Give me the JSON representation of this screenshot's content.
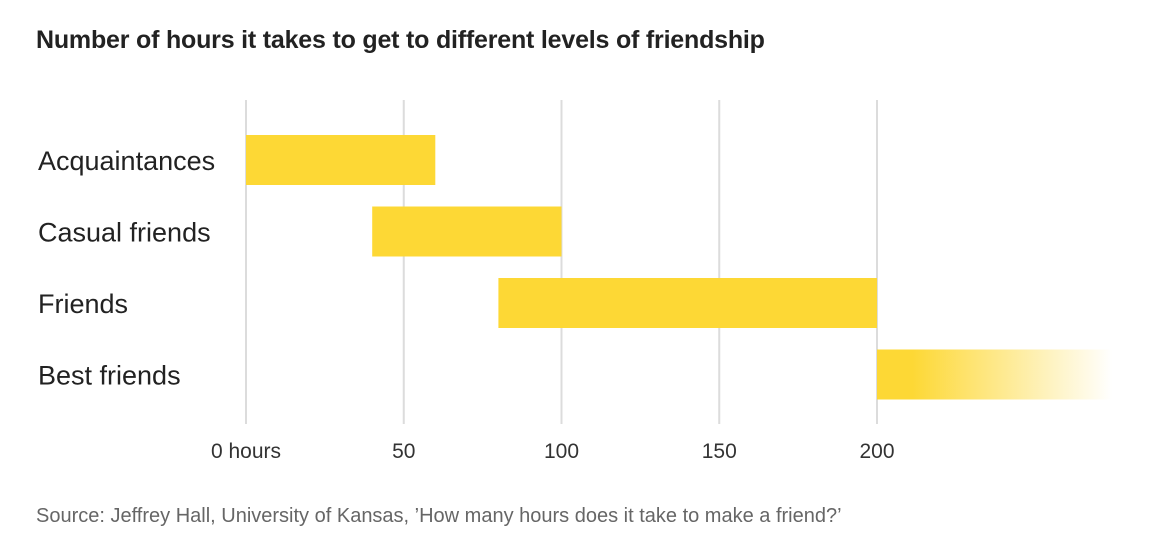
{
  "chart_data": {
    "type": "bar",
    "orientation": "horizontal-range",
    "title": "Number of hours it takes to get to different levels of friendship",
    "categories": [
      "Acquaintances",
      "Casual friends",
      "Friends",
      "Best friends"
    ],
    "ranges": [
      {
        "label": "Acquaintances",
        "start": 0,
        "end": 60
      },
      {
        "label": "Casual friends",
        "start": 40,
        "end": 100
      },
      {
        "label": "Friends",
        "start": 80,
        "end": 200
      },
      {
        "label": "Best friends",
        "start": 200,
        "end": null,
        "open_ended": true
      }
    ],
    "x_ticks": [
      {
        "value": 0,
        "label": "0 hours"
      },
      {
        "value": 50,
        "label": "50"
      },
      {
        "value": 100,
        "label": "100"
      },
      {
        "value": 150,
        "label": "150"
      },
      {
        "value": 200,
        "label": "200"
      }
    ],
    "xlim": [
      0,
      200
    ],
    "grid": "vertical",
    "legend": "none",
    "bar_color": "#FDD835"
  },
  "source": "Source: Jeffrey Hall, University of Kansas, ’How many hours does it take to make a friend?’"
}
